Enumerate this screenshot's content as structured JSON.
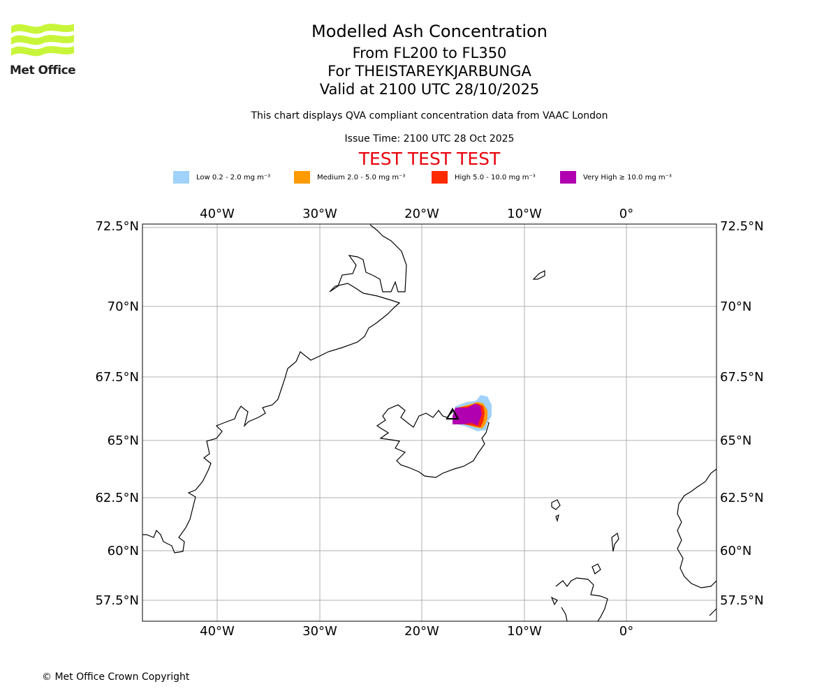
{
  "brand": {
    "name": "Met Office",
    "logo_color": "#c8f53a"
  },
  "header": {
    "title": "Modelled Ash Concentration",
    "levels": "From FL200 to FL350",
    "volcano": "For THEISTAREYKJARBUNGA",
    "valid": "Valid at 2100 UTC 28/10/2025",
    "subtitle": "This chart displays QVA compliant concentration data from VAAC London",
    "issue_time": "Issue Time: 2100 UTC 28 Oct 2025",
    "test_banner": "TEST TEST TEST"
  },
  "legend": [
    {
      "label": "Low 0.2 - 2.0 mg m⁻³",
      "color": "#a0d2fa"
    },
    {
      "label": "Medium 2.0 - 5.0 mg m⁻³",
      "color": "#ff9a00"
    },
    {
      "label": "High 5.0 - 10.0 mg m⁻³",
      "color": "#ff2a00"
    },
    {
      "label": "Very High ≥ 10.0 mg m⁻³",
      "color": "#b000b0"
    }
  ],
  "map": {
    "lon_labels": [
      "40°W",
      "30°W",
      "20°W",
      "10°W",
      "0°"
    ],
    "lat_labels": [
      "72.5°N",
      "70°N",
      "67.5°N",
      "65°N",
      "62.5°N",
      "60°N",
      "57.5°N"
    ],
    "volcano_marker": "triangle",
    "ash_region": "North-east Iceland"
  },
  "footer": {
    "copyright": "© Met Office Crown Copyright"
  }
}
